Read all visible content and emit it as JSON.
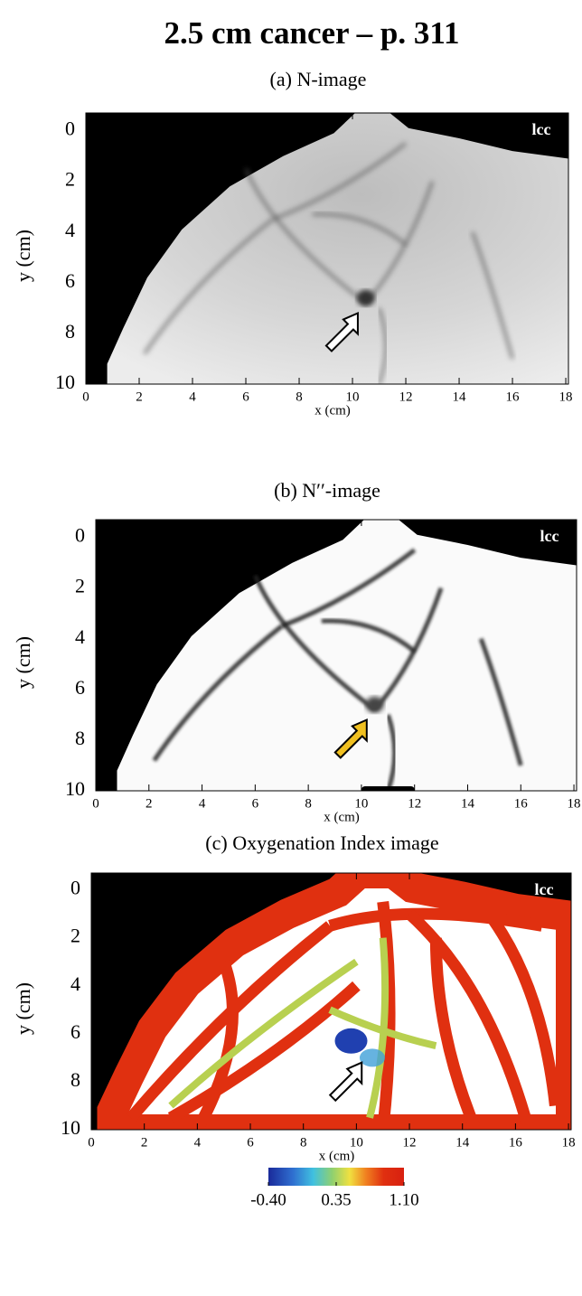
{
  "title": "2.5 cm cancer – p. 311",
  "chart_data": [
    {
      "type": "image",
      "title": "(a)  N-image",
      "xlabel": "x (cm)",
      "ylabel": "y (cm)",
      "annotation": "lcc",
      "xlim": [
        0,
        18.1
      ],
      "ylim": [
        10,
        -0.7
      ],
      "xticks": [
        0,
        2,
        4,
        6,
        8,
        10,
        12,
        14,
        16,
        18
      ],
      "yticks": [
        0,
        2,
        4,
        6,
        8,
        10
      ],
      "grid": false,
      "colormap": "gray"
    },
    {
      "type": "image",
      "title": "(b)  N′′-image",
      "xlabel": "x (cm)",
      "ylabel": "y (cm)",
      "annotation": "lcc",
      "xlim": [
        0,
        18.1
      ],
      "ylim": [
        10,
        -0.7
      ],
      "xticks": [
        0,
        2,
        4,
        6,
        8,
        10,
        12,
        14,
        16,
        18
      ],
      "yticks": [
        0,
        2,
        4,
        6,
        8,
        10
      ],
      "grid": false,
      "colormap": "gray"
    },
    {
      "type": "image",
      "title": "(c)  Oxygenation Index image",
      "xlabel": "x (cm)",
      "ylabel": "y (cm)",
      "annotation": "lcc",
      "xlim": [
        0,
        18.1
      ],
      "ylim": [
        10,
        -0.7
      ],
      "xticks": [
        0,
        2,
        4,
        6,
        8,
        10,
        12,
        14,
        16,
        18
      ],
      "yticks": [
        0,
        2,
        4,
        6,
        8,
        10
      ],
      "grid": false,
      "colormap": "jet",
      "colorbar": {
        "lim": [
          -0.4,
          1.1
        ],
        "ticks": [
          {
            "value": -0.4,
            "label": "-0.40"
          },
          {
            "value": 0.35,
            "label": "0.35"
          },
          {
            "value": 1.1,
            "label": "1.10"
          }
        ]
      }
    }
  ]
}
